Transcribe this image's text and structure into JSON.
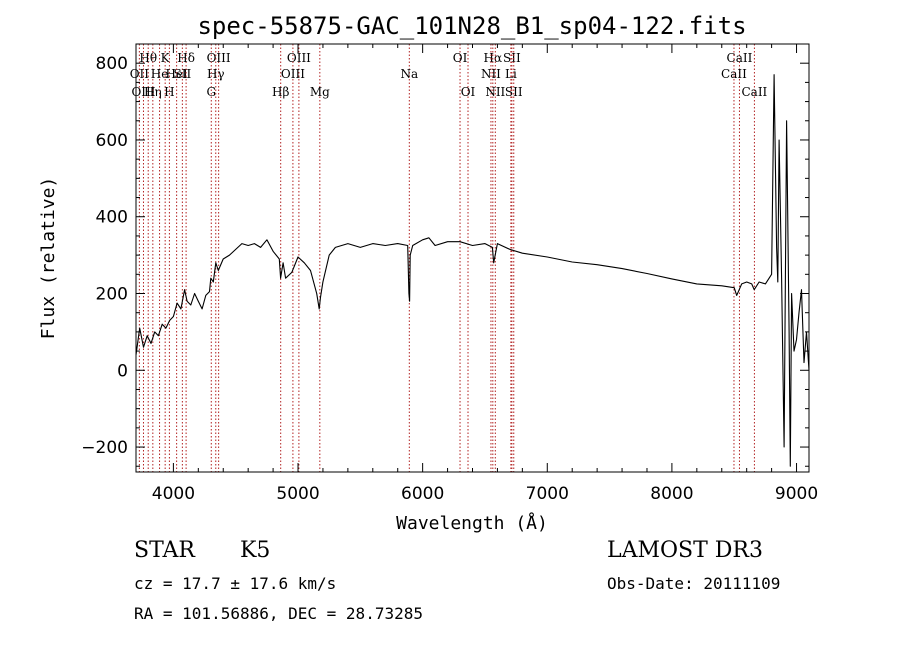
{
  "chart_data": {
    "type": "line",
    "title": "spec-55875-GAC_101N28_B1_sp04-122.fits",
    "xlabel": "Wavelength (Å)",
    "ylabel": "Flux (relative)",
    "xlim": [
      3700,
      9100
    ],
    "ylim": [
      -265,
      850
    ],
    "xticks": [
      4000,
      5000,
      6000,
      7000,
      8000,
      9000
    ],
    "xtick_labels": [
      "4000",
      "5000",
      "6000",
      "7000",
      "8000",
      "9000"
    ],
    "yticks": [
      -200,
      0,
      200,
      400,
      600,
      800
    ],
    "ytick_labels": [
      "−200",
      "0",
      "200",
      "400",
      "600",
      "800"
    ],
    "grid": false,
    "series": [
      {
        "name": "flux",
        "color": "#000000",
        "x": [
          3700,
          3730,
          3760,
          3790,
          3820,
          3850,
          3880,
          3910,
          3940,
          3970,
          4000,
          4030,
          4060,
          4090,
          4110,
          4140,
          4170,
          4200,
          4230,
          4260,
          4290,
          4300,
          4320,
          4340,
          4360,
          4400,
          4450,
          4500,
          4550,
          4600,
          4650,
          4700,
          4750,
          4800,
          4850,
          4860,
          4880,
          4900,
          4950,
          5000,
          5050,
          5100,
          5150,
          5170,
          5180,
          5200,
          5250,
          5300,
          5400,
          5500,
          5600,
          5700,
          5800,
          5880,
          5890,
          5895,
          5900,
          5920,
          6000,
          6050,
          6100,
          6200,
          6300,
          6400,
          6500,
          6560,
          6570,
          6600,
          6700,
          6800,
          7000,
          7200,
          7400,
          7600,
          7800,
          8000,
          8200,
          8400,
          8500,
          8520,
          8540,
          8560,
          8600,
          8640,
          8660,
          8700,
          8750,
          8800,
          8820,
          8840,
          8850,
          8860,
          8880,
          8900,
          8920,
          8940,
          8950,
          8960,
          8980,
          9000,
          9020,
          9040,
          9060,
          9080,
          9100
        ],
        "y": [
          40,
          110,
          60,
          90,
          70,
          100,
          90,
          120,
          110,
          130,
          140,
          175,
          160,
          210,
          180,
          170,
          200,
          180,
          160,
          195,
          205,
          240,
          230,
          280,
          260,
          290,
          300,
          315,
          330,
          325,
          330,
          320,
          340,
          310,
          290,
          240,
          280,
          240,
          255,
          295,
          280,
          260,
          200,
          160,
          190,
          230,
          300,
          320,
          330,
          320,
          330,
          325,
          330,
          325,
          200,
          180,
          300,
          325,
          340,
          345,
          325,
          335,
          335,
          325,
          330,
          320,
          280,
          330,
          315,
          305,
          295,
          282,
          275,
          265,
          252,
          238,
          225,
          220,
          215,
          195,
          210,
          225,
          230,
          225,
          210,
          230,
          225,
          250,
          770,
          320,
          230,
          600,
          240,
          -200,
          650,
          100,
          -250,
          200,
          50,
          80,
          150,
          210,
          20,
          100,
          0
        ]
      }
    ],
    "lines": [
      {
        "label": "Hθ",
        "wl": 3798,
        "row": 1
      },
      {
        "label": "OII",
        "wl": 3727,
        "row": 2
      },
      {
        "label": "OIII",
        "wl": 3760,
        "row": 3
      },
      {
        "label": "Hη",
        "wl": 3835,
        "row": 3
      },
      {
        "label": "He",
        "wl": 3889,
        "row": 2
      },
      {
        "label": "K",
        "wl": 3934,
        "row": 1
      },
      {
        "label": "SII",
        "wl": 4072,
        "row": 2
      },
      {
        "label": "H",
        "wl": 3968,
        "row": 3
      },
      {
        "label": "HeI",
        "wl": 4026,
        "row": 2
      },
      {
        "label": "Hδ",
        "wl": 4102,
        "row": 1
      },
      {
        "label": "OIII",
        "wl": 4363,
        "row": 1
      },
      {
        "label": "Hγ",
        "wl": 4340,
        "row": 2
      },
      {
        "label": "G",
        "wl": 4304,
        "row": 3
      },
      {
        "label": "Hβ",
        "wl": 4861,
        "row": 3
      },
      {
        "label": "OIII",
        "wl": 5007,
        "row": 1
      },
      {
        "label": "OIII",
        "wl": 4959,
        "row": 2
      },
      {
        "label": "Mg",
        "wl": 5175,
        "row": 3
      },
      {
        "label": "Na",
        "wl": 5893,
        "row": 2
      },
      {
        "label": "OI",
        "wl": 6300,
        "row": 1
      },
      {
        "label": "OI",
        "wl": 6364,
        "row": 3
      },
      {
        "label": "Hα",
        "wl": 6563,
        "row": 1
      },
      {
        "label": "NII",
        "wl": 6548,
        "row": 2
      },
      {
        "label": "NII",
        "wl": 6583,
        "row": 3
      },
      {
        "label": "SII",
        "wl": 6716,
        "row": 1
      },
      {
        "label": "Li",
        "wl": 6708,
        "row": 2
      },
      {
        "label": "SII",
        "wl": 6731,
        "row": 3
      },
      {
        "label": "CaII",
        "wl": 8542,
        "row": 1
      },
      {
        "label": "CaII",
        "wl": 8498,
        "row": 2
      },
      {
        "label": "CaII",
        "wl": 8662,
        "row": 3
      }
    ]
  },
  "info": {
    "object_class": "STAR",
    "subclass": "K5",
    "survey": "LAMOST DR3",
    "redshift": "cz = 17.7 ± 17.6 km/s",
    "obs_date": "Obs-Date: 20111109",
    "coords": "RA = 101.56886, DEC =  28.73285"
  }
}
